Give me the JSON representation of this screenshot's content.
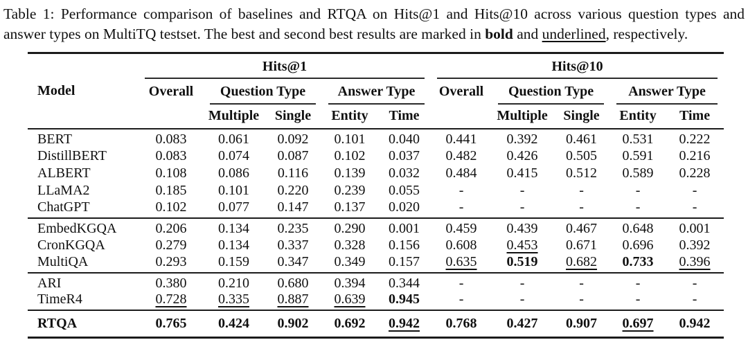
{
  "caption": {
    "prefix": "Table 1: Performance comparison of baselines and RTQA on Hits@1 and Hits@10 across various question types and answer types on MultiTQ testset. The best and second best results are marked in ",
    "bold_word": "bold",
    "between": " and ",
    "underlined_word": "underlined",
    "suffix": ", respectively."
  },
  "table": {
    "header": {
      "model_label": "Model",
      "groups": [
        {
          "label": "Hits@1"
        },
        {
          "label": "Hits@10"
        }
      ],
      "subheaders": {
        "overall": "Overall",
        "question_type": "Question Type",
        "answer_type": "Answer Type"
      },
      "leaves": {
        "multiple": "Multiple",
        "single": "Single",
        "entity": "Entity",
        "time": "Time"
      }
    },
    "columns": [
      "hits1-overall",
      "hits1-multiple",
      "hits1-single",
      "hits1-entity",
      "hits1-time",
      "hits10-overall",
      "hits10-multiple",
      "hits10-single",
      "hits10-entity",
      "hits10-time"
    ],
    "style_legend": {
      "b": "bold (best)",
      "u": "underlined (second best)"
    },
    "row_groups": [
      {
        "rows": [
          {
            "model": "BERT",
            "model_style": "",
            "values": [
              "0.083",
              "0.061",
              "0.092",
              "0.101",
              "0.040",
              "0.441",
              "0.392",
              "0.461",
              "0.531",
              "0.222"
            ],
            "styles": [
              "",
              "",
              "",
              "",
              "",
              "",
              "",
              "",
              "",
              ""
            ]
          },
          {
            "model": "DistillBERT",
            "model_style": "",
            "values": [
              "0.083",
              "0.074",
              "0.087",
              "0.102",
              "0.037",
              "0.482",
              "0.426",
              "0.505",
              "0.591",
              "0.216"
            ],
            "styles": [
              "",
              "",
              "",
              "",
              "",
              "",
              "",
              "",
              "",
              ""
            ]
          },
          {
            "model": "ALBERT",
            "model_style": "",
            "values": [
              "0.108",
              "0.086",
              "0.116",
              "0.139",
              "0.032",
              "0.484",
              "0.415",
              "0.512",
              "0.589",
              "0.228"
            ],
            "styles": [
              "",
              "",
              "",
              "",
              "",
              "",
              "",
              "",
              "",
              ""
            ]
          },
          {
            "model": "LLaMA2",
            "model_style": "",
            "values": [
              "0.185",
              "0.101",
              "0.220",
              "0.239",
              "0.055",
              "-",
              "-",
              "-",
              "-",
              "-"
            ],
            "styles": [
              "",
              "",
              "",
              "",
              "",
              "",
              "",
              "",
              "",
              ""
            ]
          },
          {
            "model": "ChatGPT",
            "model_style": "",
            "values": [
              "0.102",
              "0.077",
              "0.147",
              "0.137",
              "0.020",
              "-",
              "-",
              "-",
              "-",
              "-"
            ],
            "styles": [
              "",
              "",
              "",
              "",
              "",
              "",
              "",
              "",
              "",
              ""
            ]
          }
        ]
      },
      {
        "rows": [
          {
            "model": "EmbedKGQA",
            "model_style": "",
            "values": [
              "0.206",
              "0.134",
              "0.235",
              "0.290",
              "0.001",
              "0.459",
              "0.439",
              "0.467",
              "0.648",
              "0.001"
            ],
            "styles": [
              "",
              "",
              "",
              "",
              "",
              "",
              "",
              "",
              "",
              ""
            ]
          },
          {
            "model": "CronKGQA",
            "model_style": "",
            "values": [
              "0.279",
              "0.134",
              "0.337",
              "0.328",
              "0.156",
              "0.608",
              "0.453",
              "0.671",
              "0.696",
              "0.392"
            ],
            "styles": [
              "",
              "",
              "",
              "",
              "",
              "",
              "u",
              "",
              "",
              ""
            ]
          },
          {
            "model": "MultiQA",
            "model_style": "",
            "values": [
              "0.293",
              "0.159",
              "0.347",
              "0.349",
              "0.157",
              "0.635",
              "0.519",
              "0.682",
              "0.733",
              "0.396"
            ],
            "styles": [
              "",
              "",
              "",
              "",
              "",
              "u",
              "b",
              "u",
              "b",
              "u"
            ]
          }
        ]
      },
      {
        "rows": [
          {
            "model": "ARI",
            "model_style": "",
            "values": [
              "0.380",
              "0.210",
              "0.680",
              "0.394",
              "0.344",
              "-",
              "-",
              "-",
              "-",
              "-"
            ],
            "styles": [
              "",
              "",
              "",
              "",
              "",
              "",
              "",
              "",
              "",
              ""
            ]
          },
          {
            "model": "TimeR4",
            "model_style": "",
            "values": [
              "0.728",
              "0.335",
              "0.887",
              "0.639",
              "0.945",
              "-",
              "-",
              "-",
              "-",
              "-"
            ],
            "styles": [
              "u",
              "u",
              "u",
              "u",
              "b",
              "",
              "",
              "",
              "",
              ""
            ]
          }
        ]
      },
      {
        "rows": [
          {
            "model": "RTQA",
            "model_style": "b",
            "values": [
              "0.765",
              "0.424",
              "0.902",
              "0.692",
              "0.942",
              "0.768",
              "0.427",
              "0.907",
              "0.697",
              "0.942"
            ],
            "styles": [
              "b",
              "b",
              "b",
              "b",
              "u",
              "b",
              "",
              "b",
              "u",
              "b"
            ]
          }
        ]
      }
    ]
  }
}
